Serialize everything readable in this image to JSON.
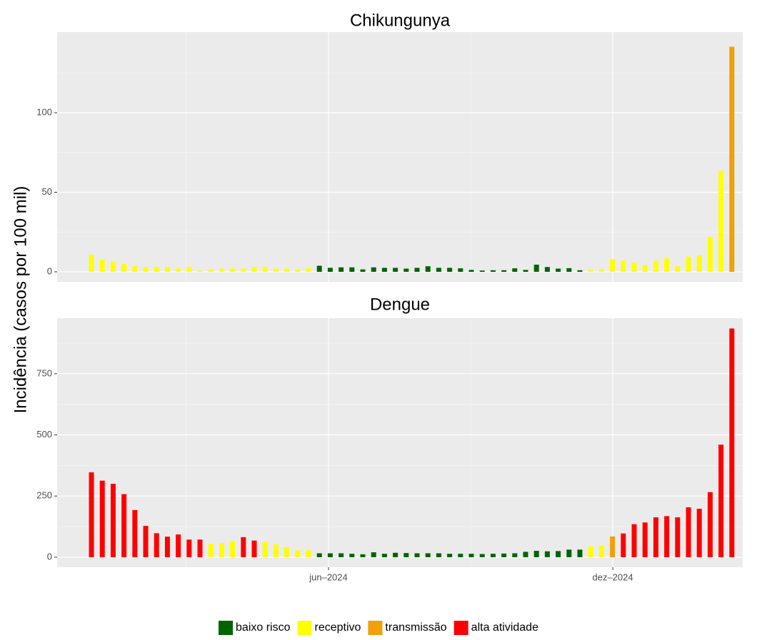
{
  "y_label": "Incidência (casos por 100 mil)",
  "legend": [
    {
      "name": "baixo risco",
      "color": "#006400"
    },
    {
      "name": "receptivo",
      "color": "#ffff00"
    },
    {
      "name": "transmissão",
      "color": "#f0a00a"
    },
    {
      "name": "alta atividade",
      "color": "#ff0000"
    }
  ],
  "chart_data": [
    {
      "type": "bar",
      "title": "Chikungunya",
      "categories": [
        null,
        null,
        null,
        null,
        null,
        null,
        null,
        null,
        null,
        null,
        null,
        null,
        null,
        null,
        null,
        null,
        null,
        null,
        null,
        null,
        null,
        null,
        null,
        null,
        null,
        null,
        null,
        null,
        null,
        null,
        null,
        null,
        null,
        null,
        null,
        null,
        null,
        null,
        null,
        null,
        null,
        null,
        null,
        null,
        null,
        null,
        null,
        null,
        null,
        null,
        null,
        null,
        null,
        null,
        null,
        null,
        null,
        null,
        null,
        null
      ],
      "values": [
        10.8,
        7.5,
        6.5,
        5,
        3.5,
        3,
        3,
        3,
        2,
        3,
        0.8,
        1.5,
        2,
        2,
        2,
        3,
        3.2,
        2,
        2,
        1.5,
        2.2,
        3.8,
        2.5,
        2.8,
        2.8,
        1.5,
        2.8,
        2.5,
        2.5,
        2,
        2.5,
        3.5,
        2.5,
        2.5,
        2.2,
        1.2,
        0.8,
        1,
        1,
        2.2,
        1.2,
        4.5,
        3,
        2,
        2.3,
        1,
        1.2,
        1.8,
        8,
        7,
        5.8,
        4.2,
        7,
        8.5,
        3.5,
        9.5,
        10.5,
        22,
        63.5,
        141.5
      ],
      "levels": [
        "receptivo",
        "receptivo",
        "receptivo",
        "receptivo",
        "receptivo",
        "receptivo",
        "receptivo",
        "receptivo",
        "receptivo",
        "receptivo",
        "receptivo",
        "receptivo",
        "receptivo",
        "receptivo",
        "receptivo",
        "receptivo",
        "receptivo",
        "receptivo",
        "receptivo",
        "receptivo",
        "receptivo",
        "baixo risco",
        "baixo risco",
        "baixo risco",
        "baixo risco",
        "baixo risco",
        "baixo risco",
        "baixo risco",
        "baixo risco",
        "baixo risco",
        "baixo risco",
        "baixo risco",
        "baixo risco",
        "baixo risco",
        "baixo risco",
        "baixo risco",
        "baixo risco",
        "baixo risco",
        "baixo risco",
        "baixo risco",
        "baixo risco",
        "baixo risco",
        "baixo risco",
        "baixo risco",
        "baixo risco",
        "baixo risco",
        "receptivo",
        "receptivo",
        "receptivo",
        "receptivo",
        "receptivo",
        "receptivo",
        "receptivo",
        "receptivo",
        "receptivo",
        "receptivo",
        "receptivo",
        "receptivo",
        "receptivo",
        "transmissão"
      ],
      "xlim": [
        -3.16,
        60.0
      ],
      "ylim": [
        -6.3,
        150.7
      ],
      "yticks": [
        0,
        50,
        100
      ],
      "grid": true
    },
    {
      "type": "bar",
      "title": "Dengue",
      "categories": [
        null,
        null,
        null,
        null,
        null,
        null,
        null,
        null,
        null,
        null,
        null,
        null,
        null,
        null,
        null,
        null,
        null,
        null,
        null,
        null,
        null,
        null,
        null,
        null,
        null,
        null,
        null,
        null,
        null,
        null,
        null,
        null,
        null,
        null,
        null,
        null,
        null,
        null,
        null,
        null,
        null,
        null,
        null,
        null,
        null,
        null,
        null,
        null,
        null,
        null,
        null,
        null,
        null,
        null,
        null,
        null,
        null,
        null,
        null,
        null
      ],
      "values": [
        347,
        313,
        300,
        258,
        193,
        128,
        98,
        84,
        93,
        72,
        72,
        55,
        58,
        66,
        82,
        68,
        63,
        52,
        41,
        28,
        29,
        16,
        16,
        16,
        14,
        12,
        20,
        14,
        18,
        17,
        16,
        16,
        16,
        14,
        14,
        14,
        13,
        14,
        15,
        16,
        22,
        26,
        24,
        25,
        31,
        31,
        44,
        47,
        85,
        97,
        135,
        142,
        163,
        168,
        163,
        204,
        198,
        266,
        460,
        935
      ],
      "levels": [
        "alta atividade",
        "alta atividade",
        "alta atividade",
        "alta atividade",
        "alta atividade",
        "alta atividade",
        "alta atividade",
        "alta atividade",
        "alta atividade",
        "alta atividade",
        "alta atividade",
        "receptivo",
        "receptivo",
        "receptivo",
        "alta atividade",
        "alta atividade",
        "receptivo",
        "receptivo",
        "receptivo",
        "receptivo",
        "receptivo",
        "baixo risco",
        "baixo risco",
        "baixo risco",
        "baixo risco",
        "baixo risco",
        "baixo risco",
        "baixo risco",
        "baixo risco",
        "baixo risco",
        "baixo risco",
        "baixo risco",
        "baixo risco",
        "baixo risco",
        "baixo risco",
        "baixo risco",
        "baixo risco",
        "baixo risco",
        "baixo risco",
        "baixo risco",
        "baixo risco",
        "baixo risco",
        "baixo risco",
        "baixo risco",
        "baixo risco",
        "baixo risco",
        "receptivo",
        "receptivo",
        "transmissão",
        "alta atividade",
        "alta atividade",
        "alta atividade",
        "alta atividade",
        "alta atividade",
        "alta atividade",
        "alta atividade",
        "alta atividade",
        "alta atividade",
        "alta atividade",
        "alta atividade"
      ],
      "xlim": [
        -3.16,
        60.0
      ],
      "xticks": [
        {
          "value": 21.84,
          "label": "jun–2024"
        },
        {
          "value": 48.03,
          "label": "dez–2024"
        }
      ],
      "ylim": [
        -41,
        977
      ],
      "yticks": [
        0,
        250,
        500,
        750
      ],
      "grid": true
    }
  ]
}
